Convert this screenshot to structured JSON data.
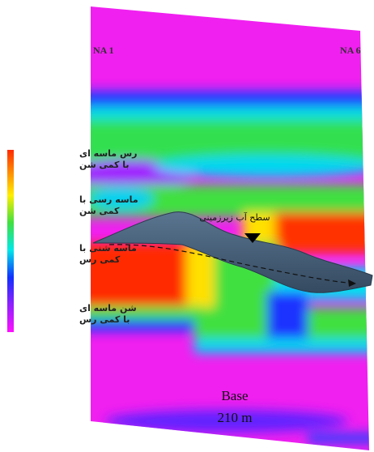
{
  "panel": {
    "left_label": "NA 1",
    "right_label": "NA 6",
    "base_label": "Base",
    "depth_label": "210 m"
  },
  "water_table": {
    "label": "سطح آب زیرزمینی"
  },
  "legend": [
    {
      "lines": [
        "رس ماسه ای",
        "با کمی شن"
      ]
    },
    {
      "lines": [
        "ماسه رسی با",
        "کمی شن"
      ]
    },
    {
      "lines": [
        "ماسه شنی با",
        "کمی رس"
      ]
    },
    {
      "lines": [
        "شن ماسه ای",
        "با کمی رس"
      ]
    }
  ]
}
